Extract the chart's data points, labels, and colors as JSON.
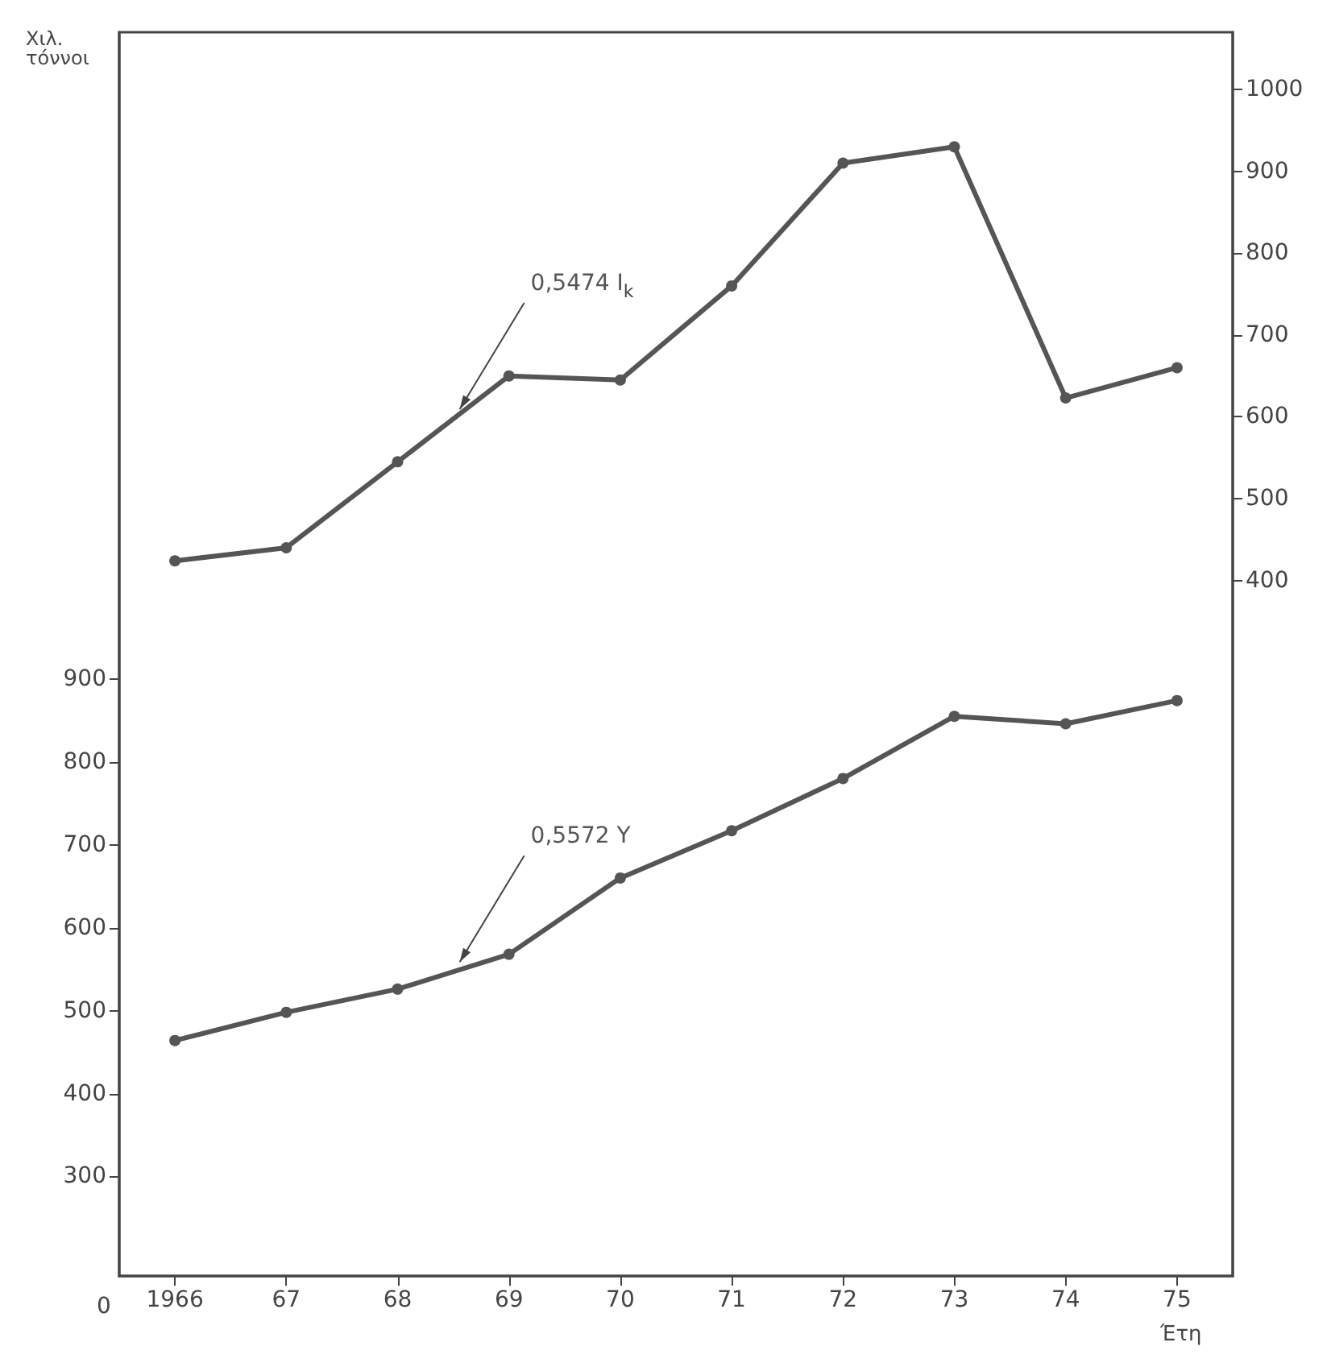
{
  "chart_data": {
    "type": "line",
    "ylabel": "Χιλ. τόννοι",
    "xlabel": "Έτη",
    "categories": [
      "1966",
      "67",
      "68",
      "69",
      "70",
      "71",
      "72",
      "73",
      "74",
      "75"
    ],
    "series": [
      {
        "name": "0,5474 I$_{k}$",
        "color": "#555555",
        "axis": "y2",
        "values": [
          424,
          440,
          545,
          650,
          645,
          760,
          910,
          930,
          623,
          660
        ]
      },
      {
        "name": "0,5572 Y",
        "color": "#555555",
        "values": [
          464,
          498,
          526,
          568,
          660,
          717,
          780,
          855,
          846,
          874
        ]
      }
    ],
    "ylim": [
      180,
      1680
    ],
    "yticks": [
      300,
      400,
      500,
      600,
      700,
      800,
      900
    ],
    "y2lim": [
      -450,
      1070
    ],
    "y2ticks": [
      400,
      500,
      600,
      700,
      800,
      900,
      1000
    ],
    "annotations": [
      "0"
    ],
    "grid": false,
    "marker": "circle",
    "line_style": "solid"
  }
}
